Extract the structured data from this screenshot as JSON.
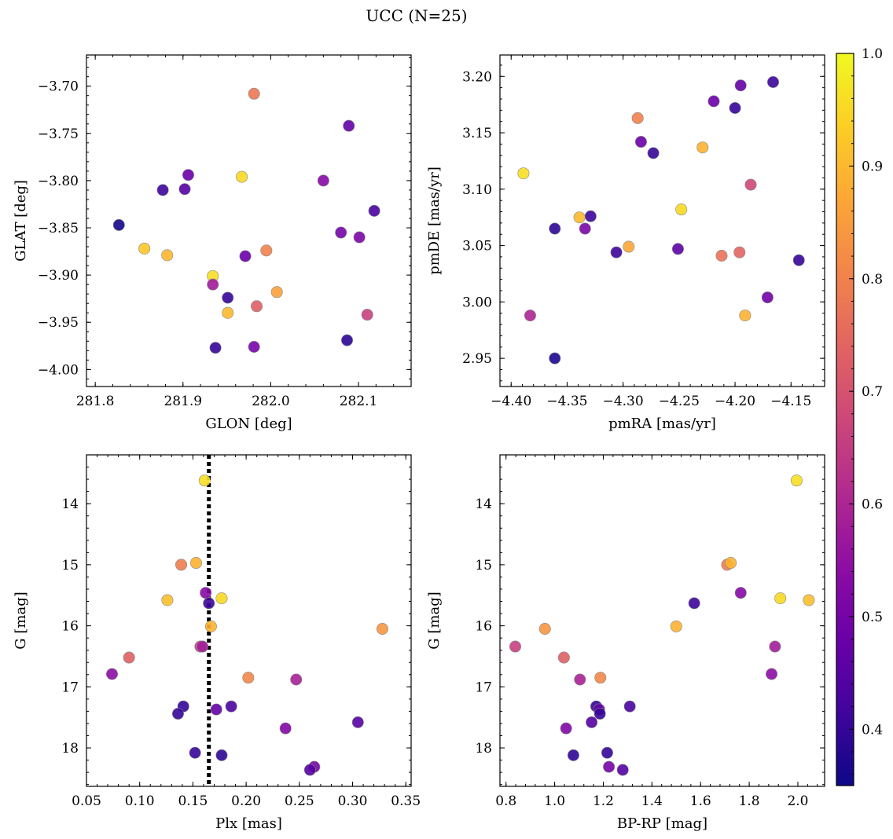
{
  "title": "UCC (N=25)",
  "colorbar": {
    "range": [
      0.35,
      1.0
    ],
    "ticks": [
      "0.4",
      "0.5",
      "0.6",
      "0.7",
      "0.8",
      "0.9",
      "1.0"
    ],
    "colormap": "plasma"
  },
  "chart_data": [
    {
      "type": "scatter",
      "xlabel": "GLON [deg]",
      "ylabel": "GLAT [deg]",
      "xlim": [
        281.79,
        282.16
      ],
      "ylim": [
        -4.018,
        -3.667
      ],
      "x_ticks": [
        "281.8",
        "281.9",
        "282.0",
        "282.1"
      ],
      "y_ticks": [
        "−3.70",
        "−3.75",
        "−3.80",
        "−3.85",
        "−3.90",
        "−3.95",
        "−4.00"
      ],
      "points": [
        {
          "x": 281.981,
          "y": -3.708,
          "c": 0.78
        },
        {
          "x": 282.089,
          "y": -3.742,
          "c": 0.47
        },
        {
          "x": 281.906,
          "y": -3.794,
          "c": 0.48
        },
        {
          "x": 281.967,
          "y": -3.796,
          "c": 0.95
        },
        {
          "x": 282.06,
          "y": -3.8,
          "c": 0.53
        },
        {
          "x": 281.877,
          "y": -3.81,
          "c": 0.41
        },
        {
          "x": 281.902,
          "y": -3.809,
          "c": 0.45
        },
        {
          "x": 282.118,
          "y": -3.832,
          "c": 0.43
        },
        {
          "x": 281.827,
          "y": -3.847,
          "c": 0.36
        },
        {
          "x": 282.08,
          "y": -3.855,
          "c": 0.5
        },
        {
          "x": 282.101,
          "y": -3.86,
          "c": 0.51
        },
        {
          "x": 281.856,
          "y": -3.872,
          "c": 0.92
        },
        {
          "x": 281.995,
          "y": -3.874,
          "c": 0.8
        },
        {
          "x": 281.882,
          "y": -3.879,
          "c": 0.9
        },
        {
          "x": 281.971,
          "y": -3.88,
          "c": 0.48
        },
        {
          "x": 281.934,
          "y": -3.901,
          "c": 0.96
        },
        {
          "x": 281.934,
          "y": -3.91,
          "c": 0.58
        },
        {
          "x": 282.007,
          "y": -3.918,
          "c": 0.86
        },
        {
          "x": 281.951,
          "y": -3.924,
          "c": 0.4
        },
        {
          "x": 281.984,
          "y": -3.933,
          "c": 0.73
        },
        {
          "x": 281.951,
          "y": -3.94,
          "c": 0.9
        },
        {
          "x": 282.11,
          "y": -3.942,
          "c": 0.66
        },
        {
          "x": 282.087,
          "y": -3.969,
          "c": 0.39
        },
        {
          "x": 281.937,
          "y": -3.977,
          "c": 0.4
        },
        {
          "x": 281.981,
          "y": -3.976,
          "c": 0.5
        }
      ]
    },
    {
      "type": "scatter",
      "xlabel": "pmRA [mas/yr]",
      "ylabel": "pmDE [mas/yr]",
      "xlim": [
        -4.41,
        -4.12
      ],
      "ylim": [
        2.925,
        3.219
      ],
      "x_ticks": [
        "−4.40",
        "−4.35",
        "−4.30",
        "−4.25",
        "−4.20",
        "−4.15"
      ],
      "y_ticks": [
        "2.95",
        "3.00",
        "3.05",
        "3.10",
        "3.15",
        "3.20"
      ],
      "points": [
        {
          "x": -4.166,
          "y": 3.195,
          "c": 0.41
        },
        {
          "x": -4.195,
          "y": 3.192,
          "c": 0.47
        },
        {
          "x": -4.219,
          "y": 3.178,
          "c": 0.48
        },
        {
          "x": -4.2,
          "y": 3.172,
          "c": 0.4
        },
        {
          "x": -4.287,
          "y": 3.163,
          "c": 0.8
        },
        {
          "x": -4.284,
          "y": 3.142,
          "c": 0.48
        },
        {
          "x": -4.229,
          "y": 3.137,
          "c": 0.89
        },
        {
          "x": -4.273,
          "y": 3.132,
          "c": 0.4
        },
        {
          "x": -4.389,
          "y": 3.114,
          "c": 0.96
        },
        {
          "x": -4.186,
          "y": 3.104,
          "c": 0.68
        },
        {
          "x": -4.248,
          "y": 3.082,
          "c": 0.95
        },
        {
          "x": -4.329,
          "y": 3.076,
          "c": 0.41
        },
        {
          "x": -4.339,
          "y": 3.075,
          "c": 0.9
        },
        {
          "x": -4.361,
          "y": 3.065,
          "c": 0.39
        },
        {
          "x": -4.334,
          "y": 3.065,
          "c": 0.51
        },
        {
          "x": -4.295,
          "y": 3.049,
          "c": 0.87
        },
        {
          "x": -4.251,
          "y": 3.047,
          "c": 0.46
        },
        {
          "x": -4.306,
          "y": 3.044,
          "c": 0.41
        },
        {
          "x": -4.196,
          "y": 3.044,
          "c": 0.74
        },
        {
          "x": -4.212,
          "y": 3.041,
          "c": 0.77
        },
        {
          "x": -4.143,
          "y": 3.037,
          "c": 0.4
        },
        {
          "x": -4.171,
          "y": 3.004,
          "c": 0.49
        },
        {
          "x": -4.191,
          "y": 2.988,
          "c": 0.89
        },
        {
          "x": -4.383,
          "y": 2.988,
          "c": 0.6
        },
        {
          "x": -4.361,
          "y": 2.95,
          "c": 0.37
        }
      ]
    },
    {
      "type": "scatter",
      "xlabel": "Plx [mas]",
      "ylabel": "G [mag]",
      "xlim": [
        0.05,
        0.355
      ],
      "ylim": [
        18.63,
        13.2
      ],
      "x_ticks": [
        "0.05",
        "0.10",
        "0.15",
        "0.20",
        "0.25",
        "0.30",
        "0.35"
      ],
      "y_ticks": [
        "14",
        "15",
        "16",
        "17",
        "18"
      ],
      "vline": {
        "x": 0.165,
        "style": "dotted",
        "color": "#000000"
      },
      "points": [
        {
          "x": 0.161,
          "y": 13.62,
          "c": 0.96
        },
        {
          "x": 0.139,
          "y": 15.0,
          "c": 0.79
        },
        {
          "x": 0.153,
          "y": 14.97,
          "c": 0.89
        },
        {
          "x": 0.162,
          "y": 15.46,
          "c": 0.53
        },
        {
          "x": 0.126,
          "y": 15.58,
          "c": 0.91
        },
        {
          "x": 0.177,
          "y": 15.55,
          "c": 0.95
        },
        {
          "x": 0.165,
          "y": 15.63,
          "c": 0.41
        },
        {
          "x": 0.167,
          "y": 16.01,
          "c": 0.89
        },
        {
          "x": 0.328,
          "y": 16.05,
          "c": 0.84
        },
        {
          "x": 0.157,
          "y": 16.34,
          "c": 0.66
        },
        {
          "x": 0.159,
          "y": 16.34,
          "c": 0.58
        },
        {
          "x": 0.09,
          "y": 16.52,
          "c": 0.73
        },
        {
          "x": 0.074,
          "y": 16.79,
          "c": 0.54
        },
        {
          "x": 0.202,
          "y": 16.85,
          "c": 0.81
        },
        {
          "x": 0.247,
          "y": 16.88,
          "c": 0.59
        },
        {
          "x": 0.141,
          "y": 17.32,
          "c": 0.4
        },
        {
          "x": 0.186,
          "y": 17.32,
          "c": 0.43
        },
        {
          "x": 0.172,
          "y": 17.37,
          "c": 0.47
        },
        {
          "x": 0.136,
          "y": 17.44,
          "c": 0.4
        },
        {
          "x": 0.305,
          "y": 17.58,
          "c": 0.45
        },
        {
          "x": 0.237,
          "y": 17.68,
          "c": 0.52
        },
        {
          "x": 0.152,
          "y": 18.08,
          "c": 0.4
        },
        {
          "x": 0.177,
          "y": 18.12,
          "c": 0.39
        },
        {
          "x": 0.264,
          "y": 18.31,
          "c": 0.5
        },
        {
          "x": 0.26,
          "y": 18.36,
          "c": 0.45
        }
      ]
    },
    {
      "type": "scatter",
      "xlabel": "BP-RP [mag]",
      "ylabel": "G [mag]",
      "xlim": [
        0.775,
        2.11
      ],
      "ylim": [
        18.63,
        13.2
      ],
      "x_ticks": [
        "0.8",
        "1.0",
        "1.2",
        "1.4",
        "1.6",
        "1.8",
        "2.0"
      ],
      "y_ticks": [
        "14",
        "15",
        "16",
        "17",
        "18"
      ],
      "points": [
        {
          "x": 1.995,
          "y": 13.62,
          "c": 0.96
        },
        {
          "x": 1.709,
          "y": 15.0,
          "c": 0.79
        },
        {
          "x": 1.724,
          "y": 14.97,
          "c": 0.89
        },
        {
          "x": 1.765,
          "y": 15.46,
          "c": 0.53
        },
        {
          "x": 2.045,
          "y": 15.58,
          "c": 0.91
        },
        {
          "x": 1.928,
          "y": 15.55,
          "c": 0.95
        },
        {
          "x": 1.574,
          "y": 15.63,
          "c": 0.41
        },
        {
          "x": 1.5,
          "y": 16.01,
          "c": 0.89
        },
        {
          "x": 0.96,
          "y": 16.05,
          "c": 0.84
        },
        {
          "x": 0.838,
          "y": 16.34,
          "c": 0.66
        },
        {
          "x": 1.906,
          "y": 16.34,
          "c": 0.58
        },
        {
          "x": 1.038,
          "y": 16.52,
          "c": 0.73
        },
        {
          "x": 1.892,
          "y": 16.79,
          "c": 0.54
        },
        {
          "x": 1.188,
          "y": 16.85,
          "c": 0.81
        },
        {
          "x": 1.104,
          "y": 16.88,
          "c": 0.59
        },
        {
          "x": 1.171,
          "y": 17.32,
          "c": 0.4
        },
        {
          "x": 1.309,
          "y": 17.32,
          "c": 0.43
        },
        {
          "x": 1.183,
          "y": 17.37,
          "c": 0.47
        },
        {
          "x": 1.186,
          "y": 17.44,
          "c": 0.4
        },
        {
          "x": 1.152,
          "y": 17.58,
          "c": 0.45
        },
        {
          "x": 1.047,
          "y": 17.68,
          "c": 0.52
        },
        {
          "x": 1.216,
          "y": 18.08,
          "c": 0.4
        },
        {
          "x": 1.077,
          "y": 18.12,
          "c": 0.39
        },
        {
          "x": 1.223,
          "y": 18.31,
          "c": 0.5
        },
        {
          "x": 1.28,
          "y": 18.36,
          "c": 0.45
        }
      ]
    }
  ]
}
